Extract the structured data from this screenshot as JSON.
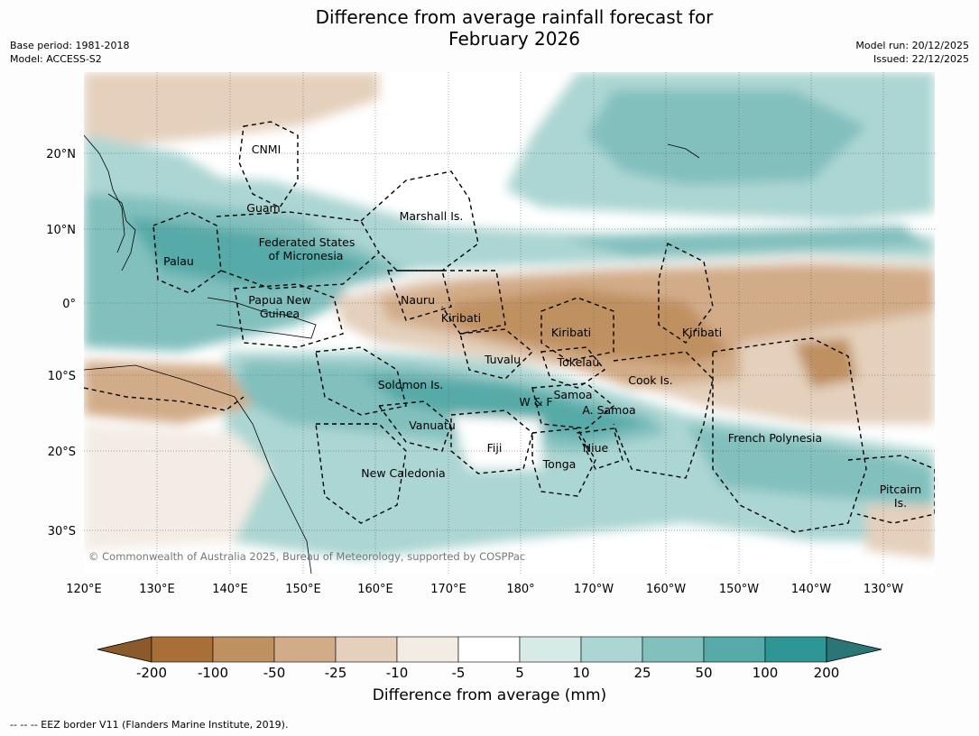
{
  "title": {
    "line1": "Difference from average rainfall forecast for",
    "line2": "February 2026"
  },
  "meta": {
    "base_period": "Base period: 1981-2018",
    "model": "Model: ACCESS-S2",
    "model_run": "Model run: 20/12/2025",
    "issued": "Issued: 22/12/2025"
  },
  "copyright": "© Commonwealth of Australia 2025, Bureau of Meteorology, supported by COSPPac",
  "axes": {
    "lon_ticks": [
      "120°E",
      "130°E",
      "140°E",
      "150°E",
      "160°E",
      "170°E",
      "180°",
      "170°W",
      "160°W",
      "150°W",
      "140°W",
      "130°W"
    ],
    "lat_ticks": [
      "20°N",
      "10°N",
      "0°",
      "10°S",
      "20°S",
      "30°S"
    ]
  },
  "places": [
    {
      "id": "cnmi",
      "text": "CNMI"
    },
    {
      "id": "guam",
      "text": "Guam"
    },
    {
      "id": "palau",
      "text": "Palau"
    },
    {
      "id": "fsm1",
      "text": "Federated States"
    },
    {
      "id": "fsm2",
      "text": "of Micronesia"
    },
    {
      "id": "marshall",
      "text": "Marshall Is."
    },
    {
      "id": "png1",
      "text": "Papua New"
    },
    {
      "id": "png2",
      "text": "Guinea"
    },
    {
      "id": "nauru",
      "text": "Nauru"
    },
    {
      "id": "kiribati1",
      "text": "Kiribati"
    },
    {
      "id": "kiribati2",
      "text": "Kiribati"
    },
    {
      "id": "kiribati3",
      "text": "Kiribati"
    },
    {
      "id": "tuvalu",
      "text": "Tuvalu"
    },
    {
      "id": "tokelau",
      "text": "Tokelau"
    },
    {
      "id": "cook",
      "text": "Cook Is."
    },
    {
      "id": "solomon",
      "text": "Solomon Is."
    },
    {
      "id": "wf",
      "text": "W & F"
    },
    {
      "id": "samoa",
      "text": "Samoa"
    },
    {
      "id": "asamoa",
      "text": "A. Samoa"
    },
    {
      "id": "vanuatu",
      "text": "Vanuatu"
    },
    {
      "id": "fiji",
      "text": "Fiji"
    },
    {
      "id": "niue",
      "text": "Niue"
    },
    {
      "id": "tonga",
      "text": "Tonga"
    },
    {
      "id": "fp",
      "text": "French Polynesia"
    },
    {
      "id": "newcal",
      "text": "New Caledonia"
    },
    {
      "id": "pitcairn1",
      "text": "Pitcairn"
    },
    {
      "id": "pitcairn2",
      "text": "Is."
    }
  ],
  "colorbar": {
    "title": "Difference from average (mm)",
    "labels": [
      "-200",
      "-100",
      "-50",
      "-25",
      "-10",
      "-5",
      "5",
      "10",
      "25",
      "50",
      "100",
      "200"
    ],
    "colors": [
      "#a87038",
      "#bf9060",
      "#d2ac88",
      "#e4d0bc",
      "#f3ece4",
      "#ffffff",
      "#d6eae8",
      "#acd6d3",
      "#82c0be",
      "#56aaa8",
      "#2e9694"
    ],
    "low_extend_color": "#8a5a2a",
    "high_extend_color": "#2a7676"
  },
  "legend_note": "-- -- -- EEZ border V11 (Flanders Marine Institute, 2019)."
}
